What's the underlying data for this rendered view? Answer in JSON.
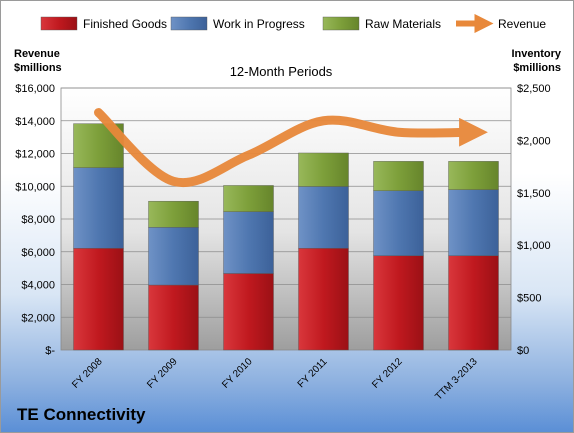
{
  "colors": {
    "finished_goods": "#c0191f",
    "work_in_progress": "#4f77b0",
    "raw_materials": "#7d9f3a",
    "revenue": "#e8883a"
  },
  "chart_data": {
    "type": "bar",
    "stacked": true,
    "title": "12-Month Periods",
    "company": "TE Connectivity",
    "left_axis": {
      "label_line1": "Revenue",
      "label_line2": "$millions",
      "range": [
        0,
        16000
      ],
      "ticks": [
        "$-",
        "$2,000",
        "$4,000",
        "$6,000",
        "$8,000",
        "$10,000",
        "$12,000",
        "$14,000",
        "$16,000"
      ]
    },
    "right_axis": {
      "label_line1": "Inventory",
      "label_line2": "$millions",
      "range": [
        0,
        2500
      ],
      "ticks": [
        "$0",
        "$500",
        "$1,000",
        "$1,500",
        "$2,000",
        "$2,500"
      ]
    },
    "categories": [
      "FY 2008",
      "FY 2009",
      "FY 2010",
      "FY 2011",
      "FY 2012",
      "TTM 3-2013"
    ],
    "series": [
      {
        "name": "Finished Goods",
        "axis": "right",
        "values": [
          970,
          620,
          730,
          970,
          900,
          900
        ]
      },
      {
        "name": "Work in Progress",
        "axis": "right",
        "values": [
          770,
          550,
          590,
          590,
          620,
          630
        ]
      },
      {
        "name": "Raw Materials",
        "axis": "right",
        "values": [
          420,
          250,
          250,
          320,
          280,
          270
        ]
      }
    ],
    "line_series": {
      "name": "Revenue",
      "axis": "left",
      "values": [
        14500,
        10300,
        11900,
        14000,
        13300,
        13300
      ]
    },
    "legend": {
      "position": "top",
      "items": [
        "Finished Goods",
        "Work in Progress",
        "Raw Materials",
        "Revenue"
      ]
    },
    "grid": true
  }
}
